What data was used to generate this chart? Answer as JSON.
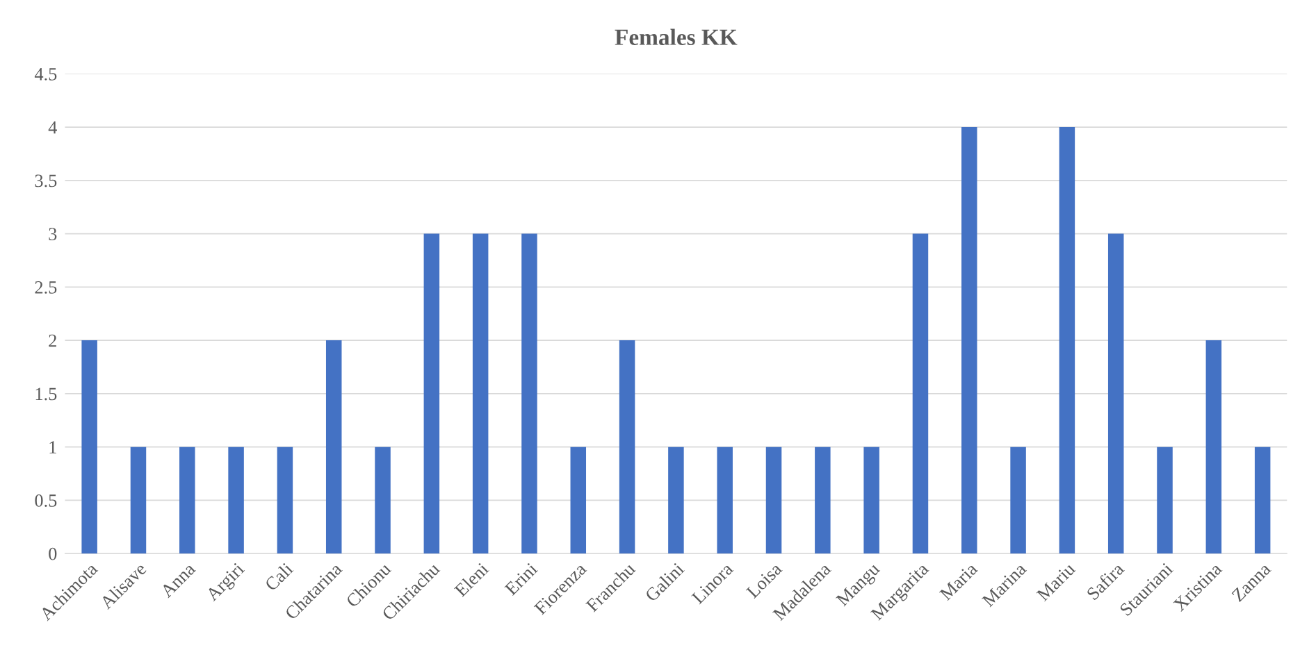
{
  "chart_data": {
    "type": "bar",
    "title": "Females KK",
    "categories": [
      "Achimota",
      "Alisave",
      "Anna",
      "Argiri",
      "Cali",
      "Chatarina",
      "Chionu",
      "Chiriachu",
      "Eleni",
      "Erini",
      "Fiorenza",
      "Franchu",
      "Galini",
      "Linora",
      "Loisa",
      "Madalena",
      "Mangu",
      "Margarita",
      "Maria",
      "Marina",
      "Mariu",
      "Safira",
      "Stauriani",
      "Xristina",
      "Zanna"
    ],
    "values": [
      2,
      1,
      1,
      1,
      1,
      2,
      1,
      3,
      3,
      3,
      1,
      2,
      1,
      1,
      1,
      1,
      1,
      3,
      4,
      1,
      4,
      3,
      1,
      2,
      1
    ],
    "color": "#4472c4",
    "ylim": [
      0,
      4.5
    ],
    "yticks": [
      0,
      0.5,
      1,
      1.5,
      2,
      2.5,
      3,
      3.5,
      4,
      4.5
    ],
    "grid": "y",
    "legend": false
  }
}
